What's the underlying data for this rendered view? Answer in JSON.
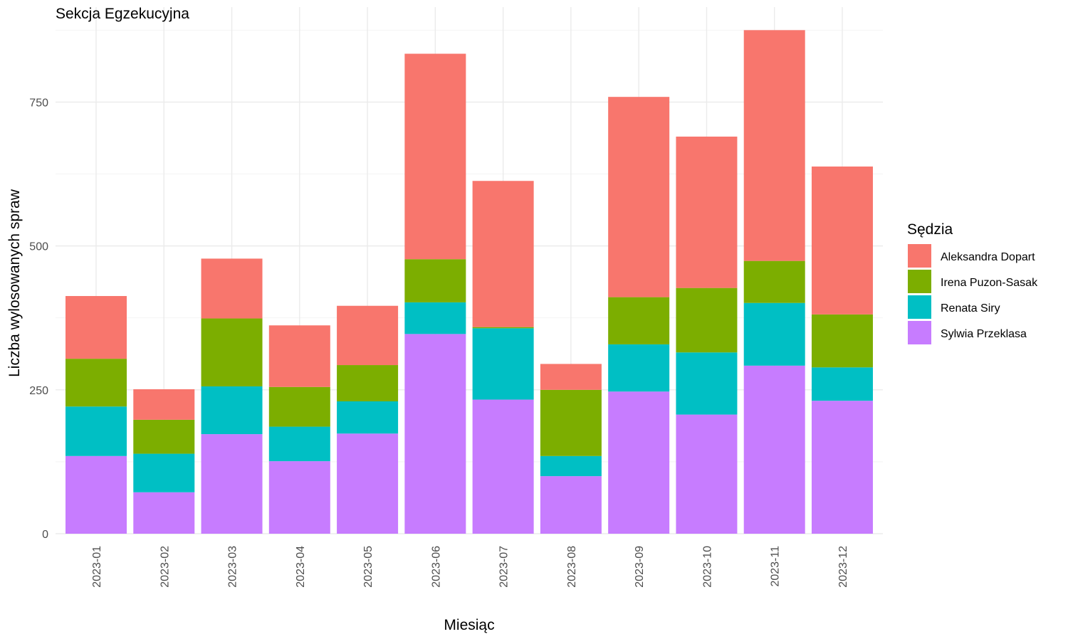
{
  "chart_data": {
    "type": "bar",
    "stacked": true,
    "title": "Sekcja Egzekucyjna",
    "xlabel": "Miesiąc",
    "ylabel": "Liczba wylosowanych spraw",
    "categories": [
      "2023-01",
      "2023-02",
      "2023-03",
      "2023-04",
      "2023-05",
      "2023-06",
      "2023-07",
      "2023-08",
      "2023-09",
      "2023-10",
      "2023-11",
      "2023-12"
    ],
    "ylim": [
      0,
      915
    ],
    "yticks": [
      0,
      250,
      500,
      750
    ],
    "grid": true,
    "legend": {
      "title": "Sędzia",
      "position": "right"
    },
    "series": [
      {
        "name": "Sylwia Przeklasa",
        "color": "#C77CFF",
        "values": [
          135,
          72,
          173,
          126,
          174,
          347,
          233,
          100,
          247,
          207,
          292,
          231
        ]
      },
      {
        "name": "Renata Siry",
        "color": "#00BFC4",
        "values": [
          86,
          67,
          83,
          60,
          56,
          55,
          124,
          35,
          82,
          108,
          109,
          58
        ]
      },
      {
        "name": "Irena Puzon-Sasak",
        "color": "#7CAE00",
        "values": [
          83,
          59,
          118,
          69,
          63,
          75,
          2,
          115,
          82,
          112,
          73,
          92
        ]
      },
      {
        "name": "Aleksandra Dopart",
        "color": "#F8766D",
        "values": [
          109,
          53,
          104,
          107,
          103,
          357,
          254,
          45,
          348,
          263,
          401,
          257
        ]
      }
    ],
    "legend_order": [
      "Aleksandra Dopart",
      "Irena Puzon-Sasak",
      "Renata Siry",
      "Sylwia Przeklasa"
    ]
  }
}
